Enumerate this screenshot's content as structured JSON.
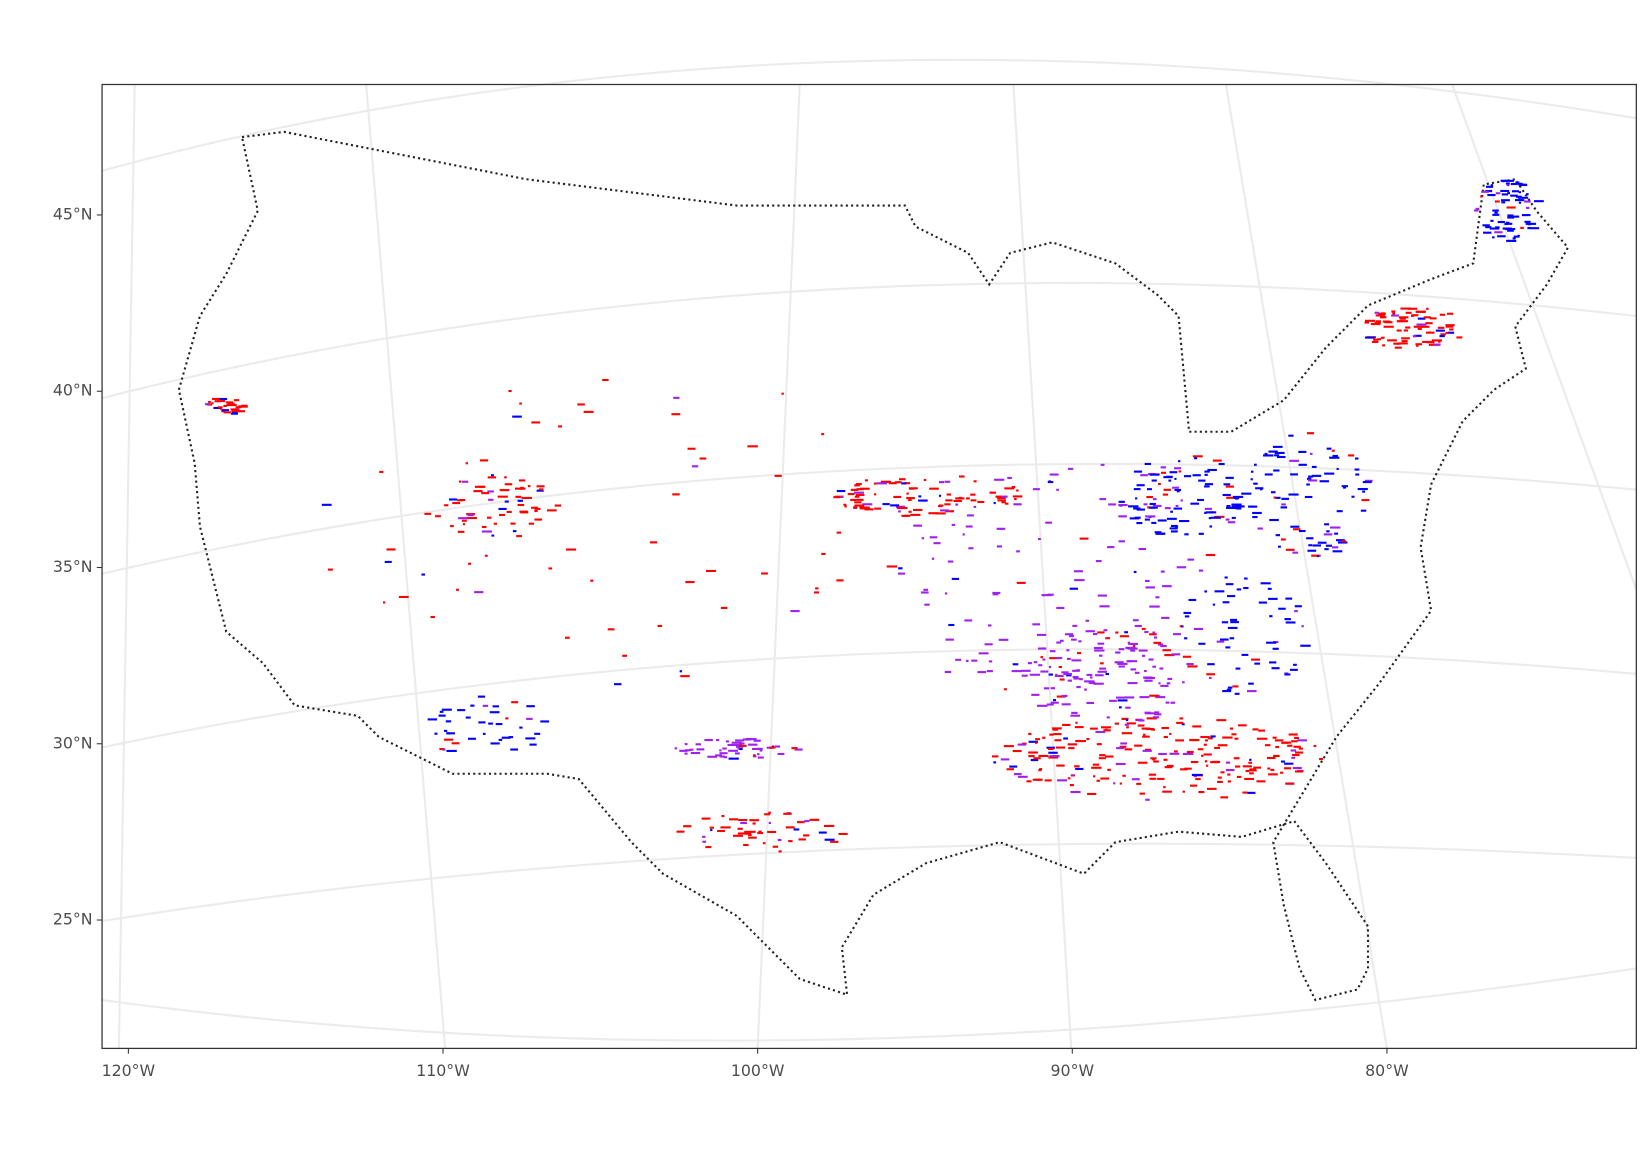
{
  "map": {
    "yticks": [
      {
        "value": 45,
        "label": "45°N"
      },
      {
        "value": 40,
        "label": "40°N"
      },
      {
        "value": 35,
        "label": "35°N"
      },
      {
        "value": 30,
        "label": "30°N"
      },
      {
        "value": 25,
        "label": "25°N"
      }
    ],
    "xticks": [
      {
        "value": -120,
        "label": "120°W"
      },
      {
        "value": -110,
        "label": "110°W"
      },
      {
        "value": -100,
        "label": "100°W"
      },
      {
        "value": -90,
        "label": "90°W"
      },
      {
        "value": -80,
        "label": "80°W"
      }
    ]
  }
}
